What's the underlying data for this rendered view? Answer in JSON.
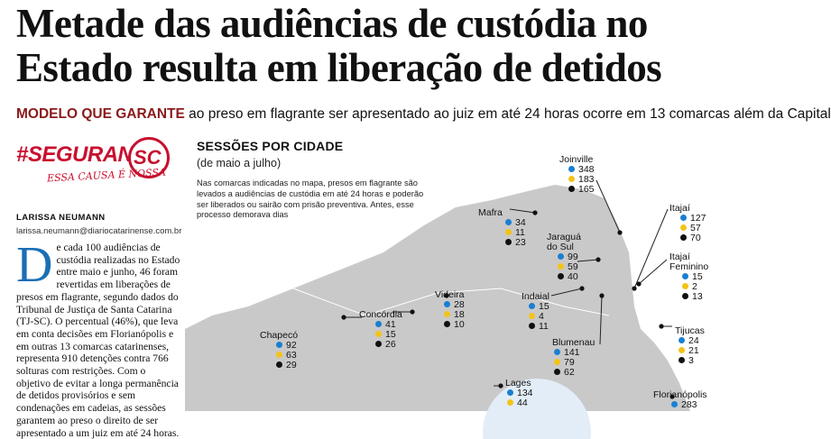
{
  "headline": "Metade das audiências de custódia no Estado resulta em liberação de detidos",
  "subhead": {
    "lead": "MODELO QUE GARANTE",
    "rest": " ao preso em flagrante ser apresentado ao juiz em até 24 horas ocorre em 13 comarcas além da Capital"
  },
  "logo": {
    "word": "#SEGURANÇA",
    "sc": "SC",
    "tag": "ESSA CAUSA É NOSSA"
  },
  "byline": "LARISSA NEUMANN",
  "email": "larissa.neumann@diariocatarinense.com.br",
  "article": {
    "dropcap": "D",
    "text": "e cada 100 audiências de custódia realizadas no Estado entre maio e junho, 46 foram revertidas em liberações de presos em flagrante, segundo dados do Tribunal de Justiça de Santa Catarina (TJ-SC). O percentual (46%), que leva em conta decisões em Florianópolis e em outras 13 comarcas catarinenses, representa 910 detenções contra 766 solturas com restrições. Com o objetivo de evitar a longa permanência de detidos provisórios e sem condenações em cadeias, as sessões garantem ao preso o direito de ser apresentado a um juiz em até 24 horas."
  },
  "section": {
    "title": "SESSÕES POR CIDADE",
    "subtitle": "(de maio a julho)",
    "note": "Nas comarcas indicadas no mapa, presos em flagrante são levados a audiências de custódia em até 24 horas e poderão ser liberados ou sairão com prisão preventiva. Antes, esse processo demorava dias"
  },
  "colors": {
    "blue": "#1a7fd1",
    "yellow": "#f3c31a",
    "black": "#111111",
    "map": "#c9c9c9",
    "accent": "#c8102e"
  },
  "cities": [
    {
      "name": "Joinville",
      "v1": "348",
      "v2": "183",
      "v3": "165"
    },
    {
      "name": "Itajaí",
      "v1": "127",
      "v2": "57",
      "v3": "70"
    },
    {
      "name": "Mafra",
      "v1": "34",
      "v2": "11",
      "v3": "23"
    },
    {
      "name": "Jaraguá do Sul",
      "name1": "Jaraguá",
      "name2": "do Sul",
      "v1": "99",
      "v2": "59",
      "v3": "40"
    },
    {
      "name": "Itajaí Feminino",
      "name1": "Itajaí",
      "name2": "Feminino",
      "v1": "15",
      "v2": "2",
      "v3": "13"
    },
    {
      "name": "Videira",
      "v1": "28",
      "v2": "18",
      "v3": "10"
    },
    {
      "name": "Indaial",
      "v1": "15",
      "v2": "4",
      "v3": "11"
    },
    {
      "name": "Concórdia",
      "v1": "41",
      "v2": "15",
      "v3": "26"
    },
    {
      "name": "Chapecó",
      "v1": "92",
      "v2": "63",
      "v3": "29"
    },
    {
      "name": "Blumenau",
      "v1": "141",
      "v2": "79",
      "v3": "62"
    },
    {
      "name": "Tijucas",
      "v1": "24",
      "v2": "21",
      "v3": "3"
    },
    {
      "name": "Lages",
      "v1": "134",
      "v2": "44"
    },
    {
      "name": "Florianópolis",
      "v1": "283"
    }
  ]
}
